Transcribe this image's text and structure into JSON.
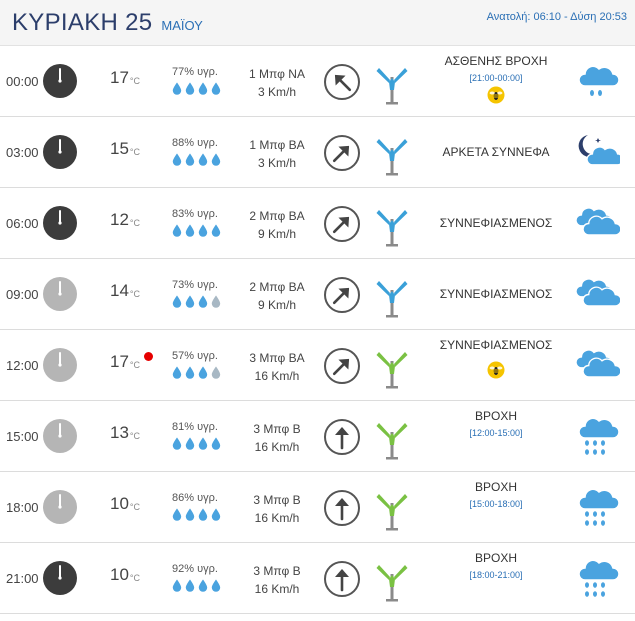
{
  "header": {
    "day": "ΚΥΡΙΑΚΗ 25",
    "month": "ΜΑΪΟΥ",
    "sun": "Ανατολή: 06:10  - Δύση 20:53"
  },
  "temp_unit": "°C",
  "rows": [
    {
      "time": "00:00",
      "night": true,
      "temp": "17",
      "humidity": "77% υγρ.",
      "drops": 4,
      "beaufort": "1 Μπφ ΝΑ",
      "speed": "3 Km/h",
      "arrow_rotation_deg": 135,
      "sock": "blue",
      "condition": "ΑΣΘΕΝΗΣ ΒΡΟΧΗ",
      "range": "[21:00-00:00]",
      "pollen": true,
      "icon": "light-rain-icon"
    },
    {
      "time": "03:00",
      "night": true,
      "temp": "15",
      "humidity": "88% υγρ.",
      "drops": 4,
      "beaufort": "1 Μπφ ΒΑ",
      "speed": "3 Km/h",
      "arrow_rotation_deg": 225,
      "sock": "blue",
      "condition": "ΑΡΚΕΤΑ ΣΥΝΝΕΦΑ",
      "range": "",
      "pollen": false,
      "icon": "moon-cloud-icon"
    },
    {
      "time": "06:00",
      "night": true,
      "temp": "12",
      "humidity": "83% υγρ.",
      "drops": 4,
      "beaufort": "2 Μπφ ΒΑ",
      "speed": "9 Km/h",
      "arrow_rotation_deg": 225,
      "sock": "blue",
      "condition": "ΣΥΝΝΕΦΙΑΣΜΕΝΟΣ",
      "range": "",
      "pollen": false,
      "icon": "clouds-icon"
    },
    {
      "time": "09:00",
      "night": false,
      "temp": "14",
      "humidity": "73% υγρ.",
      "drops": 3,
      "beaufort": "2 Μπφ ΒΑ",
      "speed": "9 Km/h",
      "arrow_rotation_deg": 225,
      "sock": "blue",
      "condition": "ΣΥΝΝΕΦΙΑΣΜΕΝΟΣ",
      "range": "",
      "pollen": false,
      "icon": "clouds-icon"
    },
    {
      "time": "12:00",
      "night": false,
      "temp": "17",
      "hot": true,
      "humidity": "57% υγρ.",
      "drops": 3,
      "beaufort": "3 Μπφ ΒΑ",
      "speed": "16 Km/h",
      "arrow_rotation_deg": 225,
      "sock": "green",
      "condition": "ΣΥΝΝΕΦΙΑΣΜΕΝΟΣ",
      "range": "",
      "pollen": true,
      "icon": "clouds-icon"
    },
    {
      "time": "15:00",
      "night": false,
      "temp": "13",
      "humidity": "81% υγρ.",
      "drops": 4,
      "beaufort": "3 Μπφ Β",
      "speed": "16 Km/h",
      "arrow_rotation_deg": 180,
      "sock": "green",
      "condition": "ΒΡΟΧΗ",
      "range": "[12:00-15:00]",
      "pollen": false,
      "icon": "rain-icon"
    },
    {
      "time": "18:00",
      "night": false,
      "temp": "10",
      "humidity": "86% υγρ.",
      "drops": 4,
      "beaufort": "3 Μπφ Β",
      "speed": "16 Km/h",
      "arrow_rotation_deg": 180,
      "sock": "green",
      "condition": "ΒΡΟΧΗ",
      "range": "[15:00-18:00]",
      "pollen": false,
      "icon": "rain-icon"
    },
    {
      "time": "21:00",
      "night": true,
      "temp": "10",
      "humidity": "92% υγρ.",
      "drops": 4,
      "beaufort": "3 Μπφ Β",
      "speed": "16 Km/h",
      "arrow_rotation_deg": 180,
      "sock": "green",
      "condition": "ΒΡΟΧΗ",
      "range": "[18:00-21:00]",
      "pollen": false,
      "icon": "rain-icon"
    }
  ],
  "colors": {
    "night_clock": "#3c3c3c",
    "day_clock": "#b5b5b5",
    "drop": "#4aa3df",
    "drop_empty": "#a8b8c4",
    "sock_blue": "#3aa0d8",
    "sock_green": "#7ac143",
    "cloud": "#4aa3df",
    "hot": "#e60000"
  }
}
